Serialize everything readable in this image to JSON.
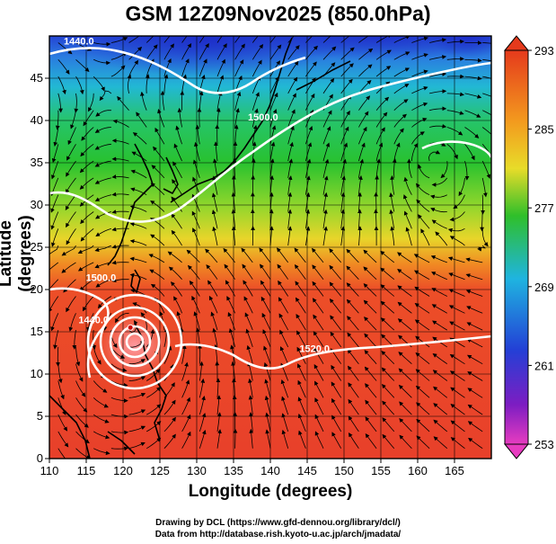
{
  "title": "GSM 12Z09Nov2025 (850.0hPa)",
  "axes": {
    "xlabel": "Longitude (degrees)",
    "ylabel": "Latitude  (degrees)",
    "xlim": [
      110,
      170
    ],
    "ylim": [
      0,
      50
    ],
    "xticks": [
      110,
      115,
      120,
      125,
      130,
      135,
      140,
      145,
      150,
      155,
      160,
      165
    ],
    "yticks": [
      0,
      5,
      10,
      15,
      20,
      25,
      30,
      35,
      40,
      45
    ]
  },
  "colorbar": {
    "labels": [
      293,
      285,
      277,
      269,
      261,
      253
    ],
    "min": 253,
    "max": 293,
    "colors": {
      "top": "#e53a1c",
      "orange": "#f39a1e",
      "yellow": "#e8dc29",
      "green": "#2fbf2a",
      "cyan": "#1fb4e0",
      "blue": "#2340d6",
      "violet": "#7d1dc2",
      "magenta": "#e73cc0"
    }
  },
  "contour_labels": [
    {
      "text": "1440.0",
      "lon": 114,
      "lat": 49
    },
    {
      "text": "1500.0",
      "lon": 139,
      "lat": 40
    },
    {
      "text": "1500.0",
      "lon": 117,
      "lat": 21
    },
    {
      "text": "1440.0",
      "lon": 116,
      "lat": 16
    },
    {
      "text": "1520.0",
      "lon": 146,
      "lat": 12.6
    }
  ],
  "typhoon_center": {
    "lon": 121,
    "lat": 15.5
  },
  "anticyclone_center": {
    "lon": 162,
    "lat": 35.5
  },
  "credits": {
    "line1": "Drawing by DCL (https://www.gfd-dennou.org/library/dcl/)",
    "line2": "Data from http://database.rish.kyoto-u.ac.jp/arch/jmadata/"
  }
}
